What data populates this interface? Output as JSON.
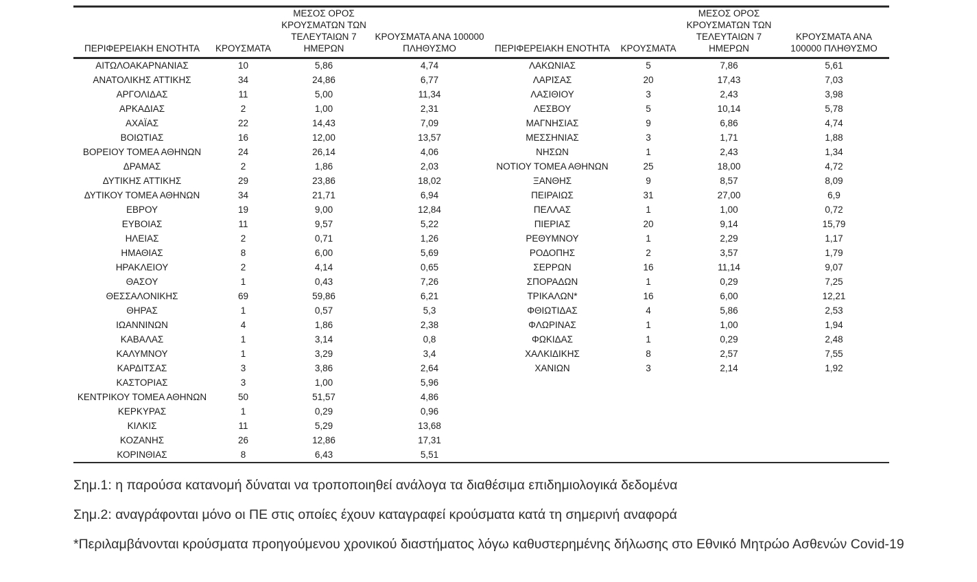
{
  "page": {
    "background_color": "#ffffff",
    "text_color": "#1c1c1c",
    "rule_color": "#2b2b2b"
  },
  "tables": [
    {
      "headers": [
        "ΠΕΡΙΦΕΡΕΙΑΚΗ ΕΝΟΤΗΤΑ",
        "ΚΡΟΥΣΜΑΤΑ",
        "ΜΕΣΟΣ ΟΡΟΣ\nΚΡΟΥΣΜΑΤΩΝ ΤΩΝ\nΤΕΛΕΥΤΑΙΩΝ 7\nΗΜΕΡΩΝ",
        "ΚΡΟΥΣΜΑΤΑ ΑΝΑ 100000\nΠΛΗΘΥΣΜΟ"
      ],
      "rows": [
        [
          "ΑΙΤΩΛΟΑΚΑΡΝΑΝΙΑΣ",
          "10",
          "5,86",
          "4,74"
        ],
        [
          "ΑΝΑΤΟΛΙΚΗΣ ΑΤΤΙΚΗΣ",
          "34",
          "24,86",
          "6,77"
        ],
        [
          "ΑΡΓΟΛΙΔΑΣ",
          "11",
          "5,00",
          "11,34"
        ],
        [
          "ΑΡΚΑΔΙΑΣ",
          "2",
          "1,00",
          "2,31"
        ],
        [
          "ΑΧΑΪΑΣ",
          "22",
          "14,43",
          "7,09"
        ],
        [
          "ΒΟΙΩΤΙΑΣ",
          "16",
          "12,00",
          "13,57"
        ],
        [
          "ΒΟΡΕΙΟΥ ΤΟΜΕΑ ΑΘΗΝΩΝ",
          "24",
          "26,14",
          "4,06"
        ],
        [
          "ΔΡΑΜΑΣ",
          "2",
          "1,86",
          "2,03"
        ],
        [
          "ΔΥΤΙΚΗΣ ΑΤΤΙΚΗΣ",
          "29",
          "23,86",
          "18,02"
        ],
        [
          "ΔΥΤΙΚΟΥ ΤΟΜΕΑ ΑΘΗΝΩΝ",
          "34",
          "21,71",
          "6,94"
        ],
        [
          "ΕΒΡΟΥ",
          "19",
          "9,00",
          "12,84"
        ],
        [
          "ΕΥΒΟΙΑΣ",
          "11",
          "9,57",
          "5,22"
        ],
        [
          "ΗΛΕΙΑΣ",
          "2",
          "0,71",
          "1,26"
        ],
        [
          "ΗΜΑΘΙΑΣ",
          "8",
          "6,00",
          "5,69"
        ],
        [
          "ΗΡΑΚΛΕΙΟΥ",
          "2",
          "4,14",
          "0,65"
        ],
        [
          "ΘΑΣΟΥ",
          "1",
          "0,43",
          "7,26"
        ],
        [
          "ΘΕΣΣΑΛΟΝΙΚΗΣ",
          "69",
          "59,86",
          "6,21"
        ],
        [
          "ΘΗΡΑΣ",
          "1",
          "0,57",
          "5,3"
        ],
        [
          "ΙΩΑΝΝΙΝΩΝ",
          "4",
          "1,86",
          "2,38"
        ],
        [
          "ΚΑΒΑΛΑΣ",
          "1",
          "3,14",
          "0,8"
        ],
        [
          "ΚΑΛΥΜΝΟΥ",
          "1",
          "3,29",
          "3,4"
        ],
        [
          "ΚΑΡΔΙΤΣΑΣ",
          "3",
          "3,86",
          "2,64"
        ],
        [
          "ΚΑΣΤΟΡΙΑΣ",
          "3",
          "1,00",
          "5,96"
        ],
        [
          "ΚΕΝΤΡΙΚΟΥ ΤΟΜΕΑ ΑΘΗΝΩΝ",
          "50",
          "51,57",
          "4,86"
        ],
        [
          "ΚΕΡΚΥΡΑΣ",
          "1",
          "0,29",
          "0,96"
        ],
        [
          "ΚΙΛΚΙΣ",
          "11",
          "5,29",
          "13,68"
        ],
        [
          "ΚΟΖΑΝΗΣ",
          "26",
          "12,86",
          "17,31"
        ],
        [
          "ΚΟΡΙΝΘΙΑΣ",
          "8",
          "6,43",
          "5,51"
        ]
      ]
    },
    {
      "headers": [
        "ΠΕΡΙΦΕΡΕΙΑΚΗ ΕΝΟΤΗΤΑ",
        "ΚΡΟΥΣΜΑΤΑ",
        "ΜΕΣΟΣ ΟΡΟΣ\nΚΡΟΥΣΜΑΤΩΝ ΤΩΝ\nΤΕΛΕΥΤΑΙΩΝ 7\nΗΜΕΡΩΝ",
        "ΚΡΟΥΣΜΑΤΑ ΑΝΑ\n100000 ΠΛΗΘΥΣΜΟ"
      ],
      "rows": [
        [
          "ΛΑΚΩΝΙΑΣ",
          "5",
          "7,86",
          "5,61"
        ],
        [
          "ΛΑΡΙΣΑΣ",
          "20",
          "17,43",
          "7,03"
        ],
        [
          "ΛΑΣΙΘΙΟΥ",
          "3",
          "2,43",
          "3,98"
        ],
        [
          "ΛΕΣΒΟΥ",
          "5",
          "10,14",
          "5,78"
        ],
        [
          "ΜΑΓΝΗΣΙΑΣ",
          "9",
          "6,86",
          "4,74"
        ],
        [
          "ΜΕΣΣΗΝΙΑΣ",
          "3",
          "1,71",
          "1,88"
        ],
        [
          "ΝΗΣΩΝ",
          "1",
          "2,43",
          "1,34"
        ],
        [
          "ΝΟΤΙΟΥ ΤΟΜΕΑ ΑΘΗΝΩΝ",
          "25",
          "18,00",
          "4,72"
        ],
        [
          "ΞΑΝΘΗΣ",
          "9",
          "8,57",
          "8,09"
        ],
        [
          "ΠΕΙΡΑΙΩΣ",
          "31",
          "27,00",
          "6,9"
        ],
        [
          "ΠΕΛΛΑΣ",
          "1",
          "1,00",
          "0,72"
        ],
        [
          "ΠΙΕΡΙΑΣ",
          "20",
          "9,14",
          "15,79"
        ],
        [
          "ΡΕΘΥΜΝΟΥ",
          "1",
          "2,29",
          "1,17"
        ],
        [
          "ΡΟΔΟΠΗΣ",
          "2",
          "3,57",
          "1,79"
        ],
        [
          "ΣΕΡΡΩΝ",
          "16",
          "11,14",
          "9,07"
        ],
        [
          "ΣΠΟΡΑΔΩΝ",
          "1",
          "0,29",
          "7,25"
        ],
        [
          "ΤΡΙΚΑΛΩΝ*",
          "16",
          "6,00",
          "12,21"
        ],
        [
          "ΦΘΙΩΤΙΔΑΣ",
          "4",
          "5,86",
          "2,53"
        ],
        [
          "ΦΛΩΡΙΝΑΣ",
          "1",
          "1,00",
          "1,94"
        ],
        [
          "ΦΩΚΙΔΑΣ",
          "1",
          "0,29",
          "2,48"
        ],
        [
          "ΧΑΛΚΙΔΙΚΗΣ",
          "8",
          "2,57",
          "7,55"
        ],
        [
          "ΧΑΝΙΩΝ",
          "3",
          "2,14",
          "1,92"
        ]
      ]
    }
  ],
  "notes": [
    "Σημ.1: η παρούσα κατανομή δύναται να τροποποιηθεί ανάλογα τα διαθέσιμα επιδημιολογικά δεδομένα",
    "Σημ.2: αναγράφονται μόνο οι ΠΕ στις οποίες έχουν καταγραφεί κρούσματα κατά τη σημερινή αναφορά",
    "*Περιλαμβάνονται κρούσματα προηγούμενου χρονικού διαστήματος λόγω καθυστερημένης δήλωσης στο Εθνικό Μητρώο Ασθενών Covid-19"
  ]
}
